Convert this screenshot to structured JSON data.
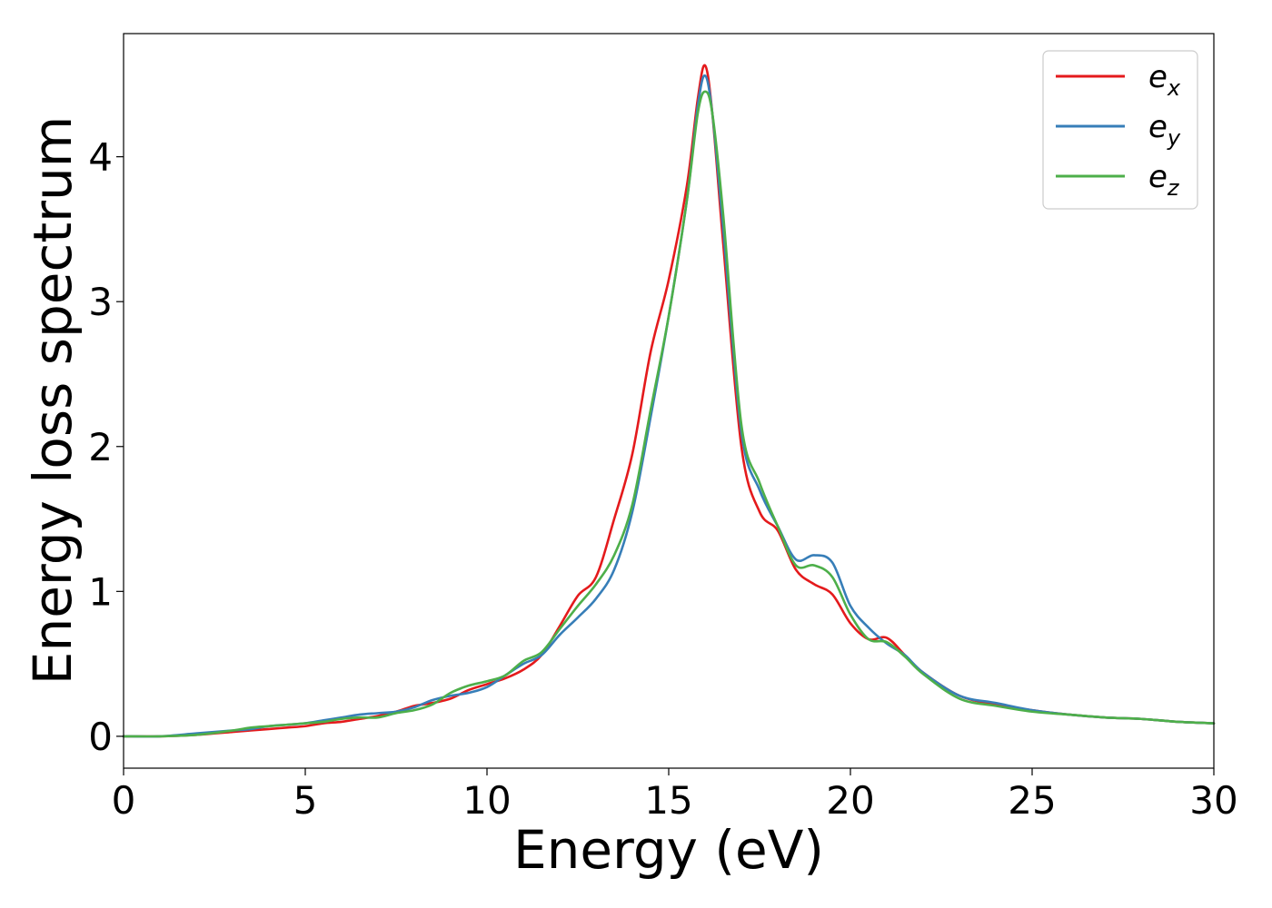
{
  "chart_data": {
    "type": "line",
    "title": "",
    "xlabel": "Energy (eV)",
    "ylabel": "Energy loss spectrum",
    "xlim": [
      0,
      30
    ],
    "ylim": [
      -0.22,
      4.85
    ],
    "xticks": [
      0,
      5,
      10,
      15,
      20,
      25,
      30
    ],
    "yticks": [
      0,
      1,
      2,
      3,
      4
    ],
    "xtick_labels": [
      "0",
      "5",
      "10",
      "15",
      "20",
      "25",
      "30"
    ],
    "ytick_labels": [
      "0",
      "1",
      "2",
      "3",
      "4"
    ],
    "grid": false,
    "legend_position": "top-right",
    "series": [
      {
        "name": "e",
        "subscript": "x",
        "color": "#e41a1c",
        "x": [
          0,
          1,
          2,
          3,
          3.5,
          4,
          4.5,
          5,
          5.5,
          6,
          6.5,
          7,
          7.5,
          8,
          8.5,
          9,
          9.5,
          10,
          10.5,
          11,
          11.5,
          12,
          12.5,
          13,
          13.5,
          14,
          14.5,
          15,
          15.5,
          15.8,
          16,
          16.2,
          16.5,
          17,
          17.5,
          18,
          18.5,
          19,
          19.5,
          20,
          20.5,
          21,
          21.5,
          22,
          23,
          24,
          25,
          26,
          27,
          28,
          29,
          30
        ],
        "y": [
          0.0,
          0.0,
          0.01,
          0.03,
          0.04,
          0.05,
          0.06,
          0.07,
          0.09,
          0.1,
          0.12,
          0.14,
          0.17,
          0.21,
          0.23,
          0.26,
          0.32,
          0.36,
          0.4,
          0.46,
          0.56,
          0.76,
          0.97,
          1.1,
          1.5,
          1.95,
          2.65,
          3.15,
          3.8,
          4.4,
          4.63,
          4.3,
          3.4,
          2.0,
          1.55,
          1.42,
          1.15,
          1.05,
          0.98,
          0.78,
          0.67,
          0.68,
          0.56,
          0.44,
          0.28,
          0.22,
          0.18,
          0.15,
          0.13,
          0.12,
          0.1,
          0.09
        ]
      },
      {
        "name": "e",
        "subscript": "y",
        "color": "#377eb8",
        "x": [
          0,
          1,
          2,
          3,
          3.5,
          4,
          4.5,
          5,
          5.5,
          6,
          6.5,
          7,
          7.5,
          8,
          8.5,
          9,
          9.5,
          10,
          10.5,
          11,
          11.5,
          12,
          12.5,
          13,
          13.5,
          14,
          14.5,
          15,
          15.5,
          15.8,
          16,
          16.2,
          16.5,
          17,
          17.5,
          18,
          18.5,
          19,
          19.5,
          20,
          20.5,
          21,
          21.5,
          22,
          23,
          24,
          25,
          26,
          27,
          28,
          29,
          30
        ],
        "y": [
          0.0,
          0.0,
          0.02,
          0.04,
          0.05,
          0.07,
          0.08,
          0.09,
          0.11,
          0.13,
          0.15,
          0.16,
          0.17,
          0.2,
          0.25,
          0.28,
          0.3,
          0.34,
          0.42,
          0.5,
          0.56,
          0.7,
          0.82,
          0.95,
          1.15,
          1.55,
          2.2,
          2.9,
          3.7,
          4.35,
          4.56,
          4.3,
          3.5,
          2.1,
          1.7,
          1.45,
          1.22,
          1.25,
          1.2,
          0.9,
          0.75,
          0.64,
          0.56,
          0.44,
          0.28,
          0.23,
          0.18,
          0.15,
          0.13,
          0.12,
          0.1,
          0.09
        ]
      },
      {
        "name": "e",
        "subscript": "z",
        "color": "#4daf4a",
        "x": [
          0,
          1,
          2,
          3,
          3.5,
          4,
          4.5,
          5,
          5.5,
          6,
          6.5,
          7,
          7.5,
          8,
          8.5,
          9,
          9.5,
          10,
          10.5,
          11,
          11.5,
          12,
          12.5,
          13,
          13.5,
          14,
          14.5,
          15,
          15.5,
          15.8,
          16,
          16.2,
          16.5,
          17,
          17.5,
          18,
          18.5,
          19,
          19.5,
          20,
          20.5,
          21,
          21.5,
          22,
          23,
          24,
          25,
          26,
          27,
          28,
          29,
          30
        ],
        "y": [
          0.0,
          0.0,
          0.01,
          0.04,
          0.06,
          0.07,
          0.08,
          0.09,
          0.1,
          0.12,
          0.13,
          0.13,
          0.16,
          0.18,
          0.22,
          0.3,
          0.35,
          0.38,
          0.42,
          0.52,
          0.58,
          0.74,
          0.9,
          1.05,
          1.25,
          1.6,
          2.25,
          2.9,
          3.7,
          4.3,
          4.45,
          4.3,
          3.6,
          2.15,
          1.75,
          1.45,
          1.18,
          1.18,
          1.1,
          0.84,
          0.67,
          0.65,
          0.55,
          0.43,
          0.26,
          0.21,
          0.17,
          0.15,
          0.13,
          0.12,
          0.1,
          0.09
        ]
      }
    ]
  }
}
